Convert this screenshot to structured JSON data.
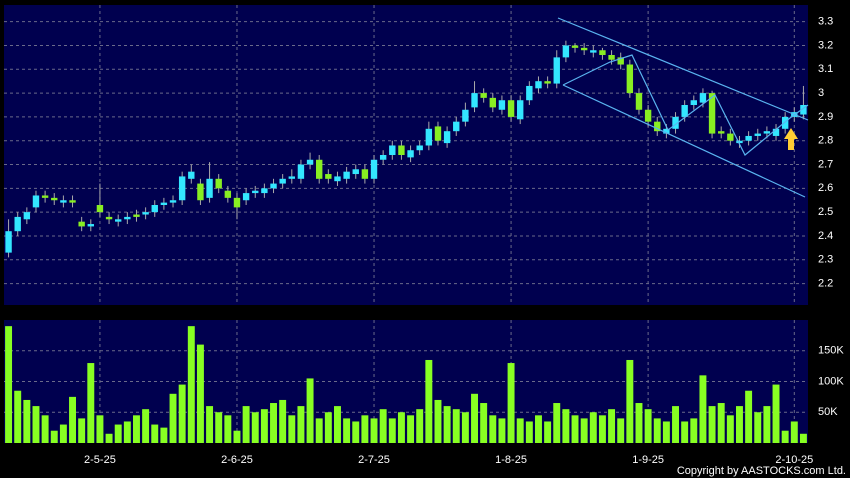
{
  "chart_data": {
    "type": "candlestick",
    "open": [
      2.33,
      2.42,
      2.47,
      2.52,
      2.57,
      2.56,
      2.54,
      2.55,
      2.46,
      2.44,
      2.53,
      2.48,
      2.46,
      2.47,
      2.49,
      2.49,
      2.5,
      2.53,
      2.54,
      2.55,
      2.64,
      2.62,
      2.56,
      2.64,
      2.59,
      2.56,
      2.55,
      2.58,
      2.58,
      2.6,
      2.62,
      2.64,
      2.64,
      2.7,
      2.72,
      2.66,
      2.63,
      2.64,
      2.66,
      2.68,
      2.64,
      2.72,
      2.74,
      2.78,
      2.73,
      2.76,
      2.78,
      2.86,
      2.79,
      2.84,
      2.88,
      2.94,
      3.0,
      2.98,
      2.93,
      2.97,
      2.89,
      2.97,
      3.02,
      3.05,
      3.04,
      3.15,
      3.2,
      3.19,
      3.17,
      3.18,
      3.16,
      3.15,
      3.12,
      3.0,
      2.93,
      2.88,
      2.83,
      2.85,
      2.9,
      2.95,
      2.96,
      3.0,
      2.84,
      2.83,
      2.79,
      2.8,
      2.82,
      2.83,
      2.82,
      2.85,
      2.9,
      2.91
    ],
    "high": [
      2.47,
      2.5,
      2.52,
      2.59,
      2.59,
      2.58,
      2.57,
      2.57,
      2.48,
      2.47,
      2.62,
      2.5,
      2.49,
      2.5,
      2.51,
      2.52,
      2.55,
      2.56,
      2.57,
      2.67,
      2.7,
      2.64,
      2.71,
      2.66,
      2.61,
      2.58,
      2.6,
      2.61,
      2.62,
      2.64,
      2.66,
      2.68,
      2.72,
      2.75,
      2.74,
      2.68,
      2.67,
      2.69,
      2.7,
      2.7,
      2.74,
      2.76,
      2.8,
      2.8,
      2.78,
      2.8,
      2.88,
      2.88,
      2.86,
      2.9,
      2.96,
      3.05,
      3.02,
      3.0,
      2.99,
      2.99,
      2.99,
      3.05,
      3.07,
      3.07,
      3.18,
      3.22,
      3.21,
      3.21,
      3.2,
      3.19,
      3.18,
      3.17,
      3.14,
      3.02,
      2.95,
      2.9,
      2.87,
      2.92,
      2.97,
      2.99,
      3.02,
      3.01,
      2.86,
      2.85,
      2.82,
      2.84,
      2.85,
      2.86,
      2.87,
      2.92,
      2.94,
      3.03
    ],
    "low": [
      2.31,
      2.4,
      2.45,
      2.5,
      2.54,
      2.53,
      2.52,
      2.52,
      2.42,
      2.42,
      2.48,
      2.45,
      2.44,
      2.45,
      2.46,
      2.47,
      2.48,
      2.51,
      2.52,
      2.53,
      2.62,
      2.53,
      2.54,
      2.58,
      2.54,
      2.47,
      2.53,
      2.56,
      2.56,
      2.58,
      2.6,
      2.62,
      2.62,
      2.68,
      2.62,
      2.62,
      2.61,
      2.62,
      2.64,
      2.62,
      2.62,
      2.7,
      2.72,
      2.72,
      2.71,
      2.74,
      2.76,
      2.78,
      2.77,
      2.82,
      2.86,
      2.92,
      2.96,
      2.92,
      2.91,
      2.88,
      2.87,
      2.95,
      3.0,
      3.02,
      3.02,
      3.13,
      3.17,
      3.16,
      3.15,
      3.14,
      3.12,
      3.1,
      2.98,
      2.91,
      2.86,
      2.82,
      2.81,
      2.83,
      2.88,
      2.93,
      2.94,
      2.81,
      2.81,
      2.78,
      2.77,
      2.78,
      2.8,
      2.81,
      2.8,
      2.83,
      2.88,
      2.89
    ],
    "close": [
      2.42,
      2.48,
      2.5,
      2.57,
      2.56,
      2.55,
      2.55,
      2.54,
      2.44,
      2.45,
      2.5,
      2.47,
      2.47,
      2.48,
      2.48,
      2.5,
      2.53,
      2.54,
      2.55,
      2.65,
      2.67,
      2.55,
      2.64,
      2.6,
      2.56,
      2.52,
      2.58,
      2.59,
      2.6,
      2.62,
      2.64,
      2.65,
      2.7,
      2.72,
      2.64,
      2.64,
      2.65,
      2.67,
      2.68,
      2.64,
      2.72,
      2.74,
      2.78,
      2.74,
      2.76,
      2.78,
      2.85,
      2.8,
      2.84,
      2.88,
      2.93,
      3.0,
      2.98,
      2.94,
      2.97,
      2.9,
      2.97,
      3.03,
      3.05,
      3.04,
      3.15,
      3.2,
      3.19,
      3.18,
      3.18,
      3.16,
      3.14,
      3.12,
      3.0,
      2.93,
      2.88,
      2.84,
      2.85,
      2.9,
      2.95,
      2.97,
      3.0,
      2.83,
      2.83,
      2.8,
      2.8,
      2.82,
      2.83,
      2.84,
      2.85,
      2.9,
      2.92,
      2.95
    ],
    "volume": [
      190000,
      85000,
      70000,
      60000,
      45000,
      20000,
      30000,
      75000,
      40000,
      130000,
      45000,
      15000,
      30000,
      35000,
      45000,
      55000,
      30000,
      25000,
      80000,
      95000,
      190000,
      160000,
      60000,
      50000,
      45000,
      20000,
      60000,
      50000,
      55000,
      65000,
      70000,
      45000,
      60000,
      105000,
      40000,
      50000,
      60000,
      40000,
      35000,
      45000,
      40000,
      55000,
      40000,
      50000,
      45000,
      55000,
      135000,
      70000,
      60000,
      55000,
      50000,
      80000,
      65000,
      45000,
      40000,
      130000,
      40000,
      35000,
      45000,
      35000,
      65000,
      55000,
      45000,
      40000,
      50000,
      45000,
      55000,
      40000,
      135000,
      65000,
      55000,
      40000,
      35000,
      60000,
      35000,
      40000,
      110000,
      60000,
      65000,
      45000,
      60000,
      85000,
      50000,
      60000,
      95000,
      20000,
      35000,
      15000
    ],
    "up_color": "#33e6ff",
    "down_color": "#88ee22",
    "volume_color": "#88ff22",
    "ylim": [
      2.11,
      3.37
    ],
    "yticks": [
      2.2,
      2.3,
      2.4,
      2.5,
      2.6,
      2.7,
      2.8,
      2.9,
      3,
      3.1,
      3.2,
      3.3
    ],
    "y2lim": [
      0,
      200000
    ],
    "y2ticks": [
      {
        "value": 50000,
        "label": "50K"
      },
      {
        "value": 100000,
        "label": "100K"
      },
      {
        "value": 150000,
        "label": "150K"
      }
    ],
    "xlim": [
      -0.5,
      87.5
    ],
    "xticks": [
      {
        "value": 10,
        "label": "2-5-25"
      },
      {
        "value": 25,
        "label": "2-6-25"
      },
      {
        "value": 40,
        "label": "2-7-25"
      },
      {
        "value": 55,
        "label": "1-8-25"
      },
      {
        "value": 70,
        "label": "1-9-25"
      },
      {
        "value": 86,
        "label": "2-10-25"
      }
    ],
    "grid": true,
    "copyright": "Copyright by AASTOCKS.com Ltd."
  }
}
